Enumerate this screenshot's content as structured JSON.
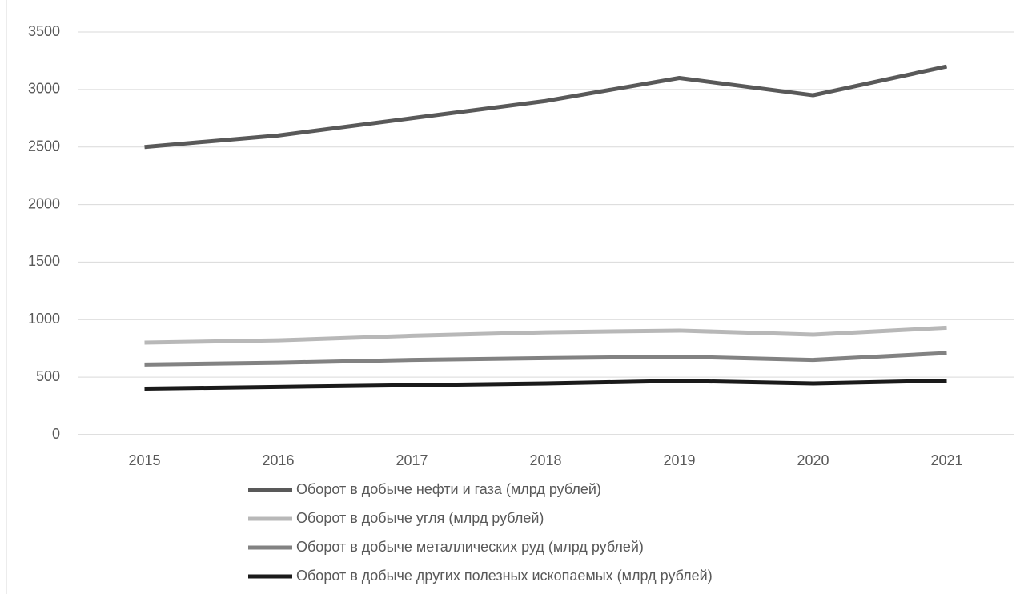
{
  "chart_data": {
    "type": "line",
    "categories": [
      "2015",
      "2016",
      "2017",
      "2018",
      "2019",
      "2020",
      "2021"
    ],
    "series": [
      {
        "name": "Оборот в добыче нефти и газа (млрд рублей)",
        "color": "#595959",
        "values": [
          2500,
          2600,
          2750,
          2900,
          3100,
          2950,
          3200
        ]
      },
      {
        "name": "Оборот в добыче угля (млрд рублей)",
        "color": "#b8b8b8",
        "values": [
          800,
          820,
          860,
          890,
          905,
          870,
          930
        ]
      },
      {
        "name": "Оборот в добыче металлических руд (млрд рублей)",
        "color": "#828282",
        "values": [
          610,
          625,
          650,
          665,
          678,
          650,
          710
        ]
      },
      {
        "name": "Оборот в добыче других полезных ископаемых (млрд рублей)",
        "color": "#1a1a1a",
        "values": [
          400,
          415,
          430,
          445,
          468,
          445,
          470
        ]
      }
    ],
    "ylim": [
      0,
      3500
    ],
    "yticks": [
      0,
      500,
      1000,
      1500,
      2000,
      2500,
      3000,
      3500
    ],
    "grid": true
  }
}
